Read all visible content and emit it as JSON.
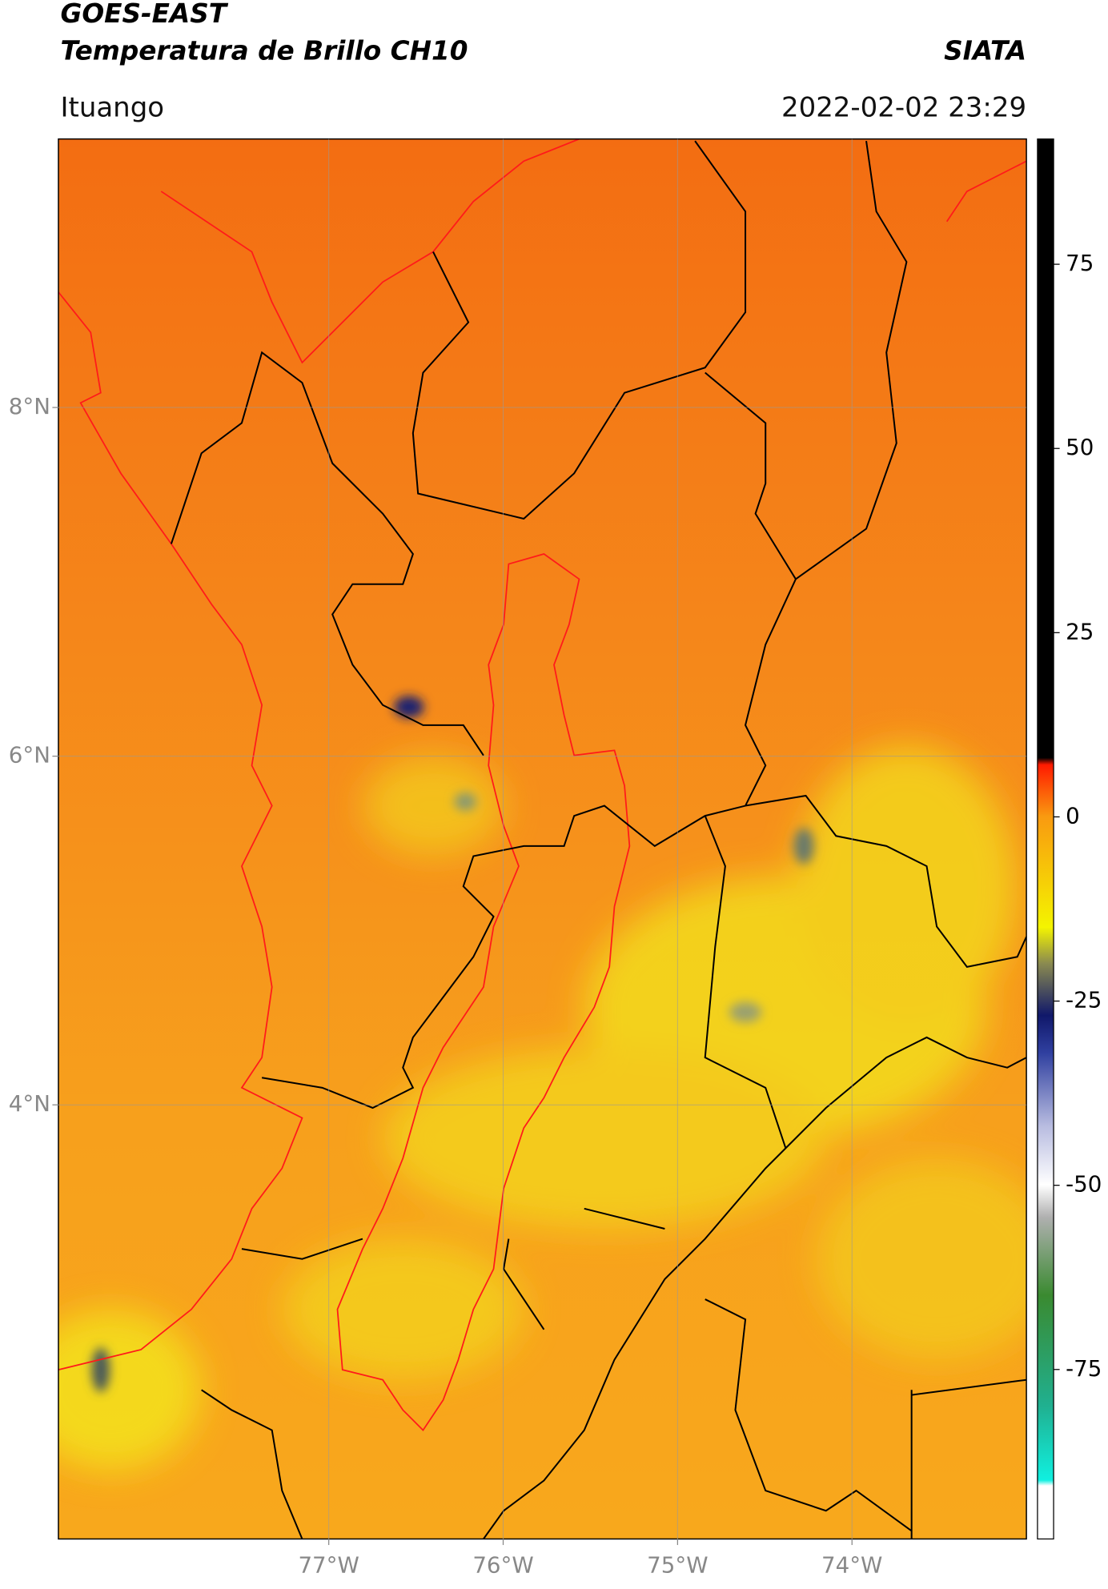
{
  "header": {
    "title": "GOES-EAST",
    "subtitle": "Temperatura de Brillo CH10",
    "credit": "SIATA",
    "location": "Ituango",
    "timestamp": "2022-02-02 23:29"
  },
  "map": {
    "xlim": [
      -78.55,
      -73.0
    ],
    "ylim": [
      1.51,
      9.54
    ],
    "xticks": [
      {
        "value": -77,
        "label": "77°W"
      },
      {
        "value": -76,
        "label": "76°W"
      },
      {
        "value": -75,
        "label": "75°W"
      },
      {
        "value": -74,
        "label": "74°W"
      }
    ],
    "yticks": [
      {
        "value": 8,
        "label": "8°N"
      },
      {
        "value": 6,
        "label": "6°N"
      },
      {
        "value": 4,
        "label": "4°N"
      }
    ],
    "grid": true
  },
  "colorbar": {
    "lim": [
      -98,
      92
    ],
    "ticks": [
      75,
      50,
      25,
      0,
      -25,
      -50,
      -75
    ]
  }
}
